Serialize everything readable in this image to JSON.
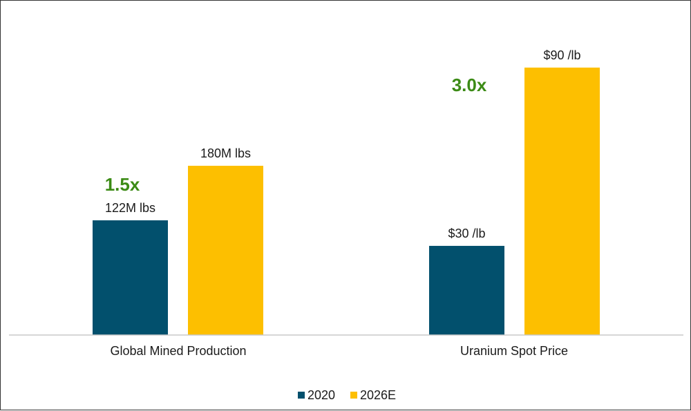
{
  "chart_data": {
    "type": "bar",
    "title": "",
    "xlabel": "",
    "ylabel": "",
    "legend_position": "bottom",
    "grid": false,
    "panels": [
      {
        "category": "Global Mined Production",
        "multiplier_label": "1.5x",
        "values": [
          122,
          180
        ],
        "value_labels": [
          "122M lbs",
          "180M lbs"
        ],
        "ylim": [
          0,
          335
        ]
      },
      {
        "category": "Uranium Spot Price",
        "multiplier_label": "3.0x",
        "values": [
          30,
          90
        ],
        "value_labels": [
          "$30 /lb",
          "$90 /lb"
        ],
        "ylim": [
          0,
          106
        ]
      }
    ],
    "series": [
      {
        "name": "2020",
        "color": "#02506d"
      },
      {
        "name": "2026E",
        "color": "#fdbf00"
      }
    ],
    "multiplier_color": "#3c8b16",
    "axis_color": "#c8c8c8"
  }
}
